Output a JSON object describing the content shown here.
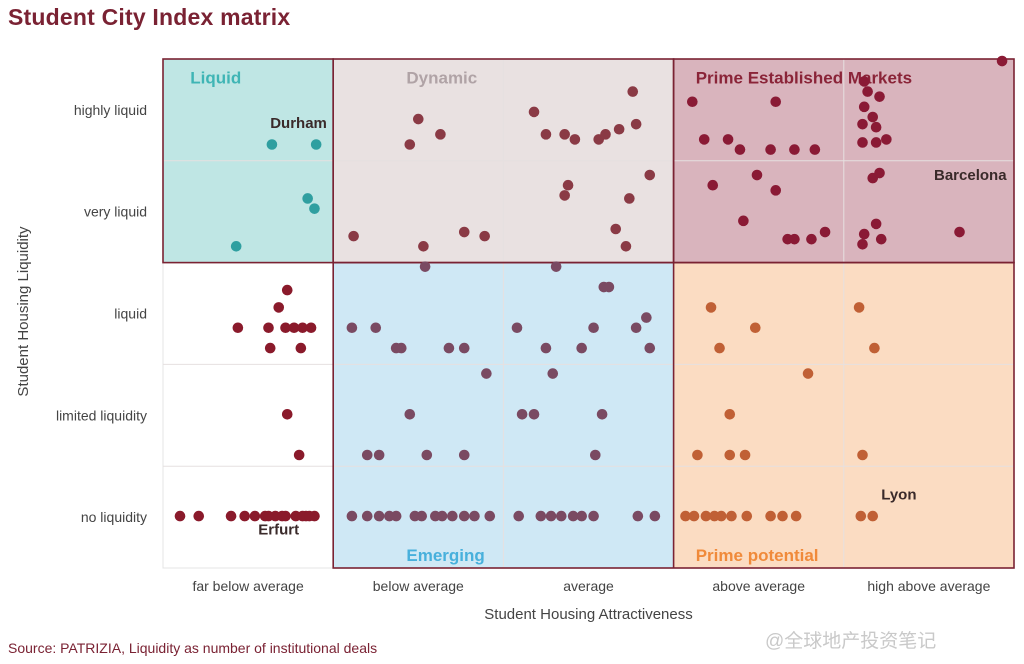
{
  "title": "Student City Index matrix",
  "source": "Source: PATRIZIA, Liquidity as number of institutional deals",
  "watermark": "@全球地产投资笔记",
  "chart_data": {
    "type": "scatter",
    "xlabel": "Student Housing Attractiveness",
    "ylabel": "Student Housing Liquidity",
    "x_categories": [
      "far below average",
      "below average",
      "average",
      "above average",
      "high above average"
    ],
    "y_categories": [
      "highly liquid",
      "very liquid",
      "liquid",
      "limited liquidity",
      "no liquidity"
    ],
    "xlim": [
      0,
      5
    ],
    "ylim": [
      0,
      5
    ],
    "zones": [
      {
        "name": "Liquid",
        "x": [
          0,
          1
        ],
        "y": [
          3,
          5
        ],
        "color": "#bfe6e4",
        "border": "#7a2233",
        "label_color": "#3fb5b5"
      },
      {
        "name": "Dynamic",
        "x": [
          1,
          3
        ],
        "y": [
          3,
          5
        ],
        "color": "#e9e1e1",
        "border": "#7a2233",
        "label_color": "#b0a3a6"
      },
      {
        "name": "Prime Established Markets",
        "x": [
          3,
          5
        ],
        "y": [
          3,
          5
        ],
        "color": "#d9b4bd",
        "border": "#7a2233",
        "label_color": "#8a2438"
      },
      {
        "name": "Emerging",
        "x": [
          1,
          3
        ],
        "y": [
          0,
          3
        ],
        "color": "#cfe8f5",
        "border": "#7a2233",
        "label_color": "#48b0dc"
      },
      {
        "name": "Prime potential",
        "x": [
          3,
          5
        ],
        "y": [
          0,
          3
        ],
        "color": "#fbdcc2",
        "border": "#7a2233",
        "label_color": "#f08a3a"
      }
    ],
    "city_labels": [
      {
        "text": "Durham",
        "x": 0.63,
        "y": 4.37
      },
      {
        "text": "Barcelona",
        "x": 4.53,
        "y": 3.86
      },
      {
        "text": "Lyon",
        "x": 4.22,
        "y": 0.72
      },
      {
        "text": "Erfurt",
        "x": 0.56,
        "y": 0.38
      }
    ],
    "series": [
      {
        "color": "#2f9fa0",
        "points": [
          [
            0.64,
            4.16
          ],
          [
            0.9,
            4.16
          ],
          [
            0.85,
            3.63
          ],
          [
            0.89,
            3.53
          ],
          [
            0.43,
            3.16
          ]
        ]
      },
      {
        "color": "#8a3a45",
        "points": [
          [
            1.5,
            4.41
          ],
          [
            1.45,
            4.16
          ],
          [
            1.63,
            4.26
          ],
          [
            1.12,
            3.26
          ],
          [
            1.53,
            3.16
          ],
          [
            1.77,
            3.3
          ],
          [
            1.89,
            3.26
          ],
          [
            2.18,
            4.48
          ],
          [
            2.25,
            4.26
          ],
          [
            2.36,
            4.26
          ],
          [
            2.42,
            4.21
          ],
          [
            2.56,
            4.21
          ],
          [
            2.6,
            4.26
          ],
          [
            2.68,
            4.31
          ],
          [
            2.78,
            4.36
          ],
          [
            2.76,
            4.68
          ],
          [
            2.38,
            3.76
          ],
          [
            2.36,
            3.66
          ],
          [
            2.74,
            3.63
          ],
          [
            2.86,
            3.86
          ],
          [
            2.66,
            3.33
          ],
          [
            2.72,
            3.16
          ]
        ]
      },
      {
        "color": "#8a1a35",
        "points": [
          [
            3.11,
            4.58
          ],
          [
            3.6,
            4.58
          ],
          [
            3.18,
            4.21
          ],
          [
            3.32,
            4.21
          ],
          [
            3.39,
            4.11
          ],
          [
            3.57,
            4.11
          ],
          [
            3.71,
            4.11
          ],
          [
            3.83,
            4.11
          ],
          [
            3.23,
            3.76
          ],
          [
            3.49,
            3.86
          ],
          [
            3.6,
            3.71
          ],
          [
            3.41,
            3.41
          ],
          [
            3.67,
            3.23
          ],
          [
            3.71,
            3.23
          ],
          [
            3.81,
            3.23
          ],
          [
            3.89,
            3.3
          ],
          [
            4.12,
            4.78
          ],
          [
            4.14,
            4.68
          ],
          [
            4.21,
            4.63
          ],
          [
            4.12,
            4.53
          ],
          [
            4.17,
            4.43
          ],
          [
            4.11,
            4.36
          ],
          [
            4.19,
            4.33
          ],
          [
            4.11,
            4.18
          ],
          [
            4.19,
            4.18
          ],
          [
            4.25,
            4.21
          ],
          [
            4.17,
            3.83
          ],
          [
            4.21,
            3.88
          ],
          [
            4.19,
            3.38
          ],
          [
            4.12,
            3.28
          ],
          [
            4.22,
            3.23
          ],
          [
            4.68,
            3.3
          ],
          [
            4.11,
            3.18
          ],
          [
            4.93,
            4.98
          ]
        ]
      },
      {
        "color": "#8a1a2b",
        "points": [
          [
            0.73,
            2.73
          ],
          [
            0.68,
            2.56
          ],
          [
            0.72,
            2.36
          ],
          [
            0.62,
            2.36
          ],
          [
            0.77,
            2.36
          ],
          [
            0.87,
            2.36
          ],
          [
            0.82,
            2.36
          ],
          [
            0.44,
            2.36
          ],
          [
            0.63,
            2.16
          ],
          [
            0.81,
            2.16
          ],
          [
            0.73,
            1.51
          ],
          [
            0.8,
            1.11
          ],
          [
            0.1,
            0.51
          ],
          [
            0.21,
            0.51
          ],
          [
            0.4,
            0.51
          ],
          [
            0.48,
            0.51
          ],
          [
            0.54,
            0.51
          ],
          [
            0.6,
            0.51
          ],
          [
            0.66,
            0.51
          ],
          [
            0.72,
            0.51
          ],
          [
            0.78,
            0.51
          ],
          [
            0.84,
            0.51
          ],
          [
            0.89,
            0.51
          ],
          [
            0.62,
            0.51
          ],
          [
            0.7,
            0.51
          ],
          [
            0.82,
            0.51
          ],
          [
            0.86,
            0.51
          ]
        ]
      },
      {
        "color": "#7a4a62",
        "points": [
          [
            1.54,
            2.96
          ],
          [
            1.11,
            2.36
          ],
          [
            1.25,
            2.36
          ],
          [
            1.37,
            2.16
          ],
          [
            1.4,
            2.16
          ],
          [
            1.68,
            2.16
          ],
          [
            1.77,
            2.16
          ],
          [
            1.9,
            1.91
          ],
          [
            1.45,
            1.51
          ],
          [
            1.2,
            1.11
          ],
          [
            1.27,
            1.11
          ],
          [
            1.55,
            1.11
          ],
          [
            1.77,
            1.11
          ],
          [
            2.31,
            2.96
          ],
          [
            2.59,
            2.76
          ],
          [
            2.62,
            2.76
          ],
          [
            2.08,
            2.36
          ],
          [
            2.53,
            2.36
          ],
          [
            2.78,
            2.36
          ],
          [
            2.84,
            2.46
          ],
          [
            2.86,
            2.16
          ],
          [
            2.25,
            2.16
          ],
          [
            2.46,
            2.16
          ],
          [
            2.29,
            1.91
          ],
          [
            2.11,
            1.51
          ],
          [
            2.18,
            1.51
          ],
          [
            2.58,
            1.51
          ],
          [
            2.54,
            1.11
          ],
          [
            1.11,
            0.51
          ],
          [
            1.2,
            0.51
          ],
          [
            1.27,
            0.51
          ],
          [
            1.33,
            0.51
          ],
          [
            1.37,
            0.51
          ],
          [
            1.48,
            0.51
          ],
          [
            1.52,
            0.51
          ],
          [
            1.6,
            0.51
          ],
          [
            1.64,
            0.51
          ],
          [
            1.7,
            0.51
          ],
          [
            1.77,
            0.51
          ],
          [
            1.83,
            0.51
          ],
          [
            1.92,
            0.51
          ],
          [
            2.09,
            0.51
          ],
          [
            2.22,
            0.51
          ],
          [
            2.28,
            0.51
          ],
          [
            2.34,
            0.51
          ],
          [
            2.41,
            0.51
          ],
          [
            2.46,
            0.51
          ],
          [
            2.53,
            0.51
          ],
          [
            2.79,
            0.51
          ],
          [
            2.89,
            0.51
          ]
        ]
      },
      {
        "color": "#c06035",
        "points": [
          [
            3.22,
            2.56
          ],
          [
            3.48,
            2.36
          ],
          [
            3.27,
            2.16
          ],
          [
            3.79,
            1.91
          ],
          [
            3.33,
            1.51
          ],
          [
            3.14,
            1.11
          ],
          [
            3.33,
            1.11
          ],
          [
            3.42,
            1.11
          ],
          [
            4.09,
            2.56
          ],
          [
            4.18,
            2.16
          ],
          [
            4.11,
            1.11
          ],
          [
            3.07,
            0.51
          ],
          [
            3.12,
            0.51
          ],
          [
            3.19,
            0.51
          ],
          [
            3.24,
            0.51
          ],
          [
            3.28,
            0.51
          ],
          [
            3.34,
            0.51
          ],
          [
            3.43,
            0.51
          ],
          [
            3.57,
            0.51
          ],
          [
            3.64,
            0.51
          ],
          [
            3.72,
            0.51
          ],
          [
            4.1,
            0.51
          ],
          [
            4.17,
            0.51
          ]
        ]
      }
    ]
  }
}
